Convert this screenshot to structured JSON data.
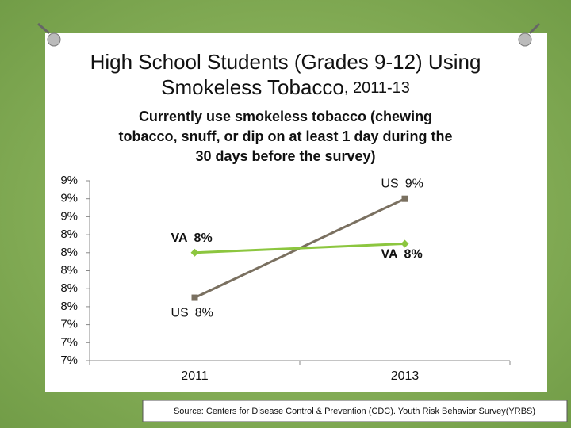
{
  "chart_data": {
    "type": "line",
    "title": [
      "High School Students (Grades 9-12) Using",
      "Smokeless Tobacco",
      ", 2011-13"
    ],
    "subtitle": [
      "Currently use smokeless tobacco (chewing",
      "tobacco, snuff, or dip on at least 1 day during the",
      "30 days before the survey)"
    ],
    "categories": [
      "2011",
      "2013"
    ],
    "series": [
      {
        "name": "US",
        "color": "#7a7060",
        "marker": "square",
        "values": [
          7.7,
          8.8
        ],
        "value_labels": [
          "8%",
          "9%"
        ]
      },
      {
        "name": "VA",
        "color": "#8cc63f",
        "marker": "diamond",
        "values": [
          8.2,
          8.3
        ],
        "value_labels": [
          "8%",
          "8%"
        ]
      }
    ],
    "ylim": [
      7,
      9
    ],
    "yticks": [
      {
        "value": 7.0,
        "label": "7%"
      },
      {
        "value": 7.2,
        "label": "7%"
      },
      {
        "value": 7.4,
        "label": "7%"
      },
      {
        "value": 7.6,
        "label": "8%"
      },
      {
        "value": 7.8,
        "label": "8%"
      },
      {
        "value": 8.0,
        "label": "8%"
      },
      {
        "value": 8.2,
        "label": "8%"
      },
      {
        "value": 8.4,
        "label": "8%"
      },
      {
        "value": 8.6,
        "label": "9%"
      },
      {
        "value": 8.8,
        "label": "9%"
      },
      {
        "value": 9.0,
        "label": "9%"
      }
    ],
    "grid": false,
    "source": "Source: Centers for Disease Control & Prevention (CDC). Youth Risk Behavior Survey(YRBS)"
  }
}
